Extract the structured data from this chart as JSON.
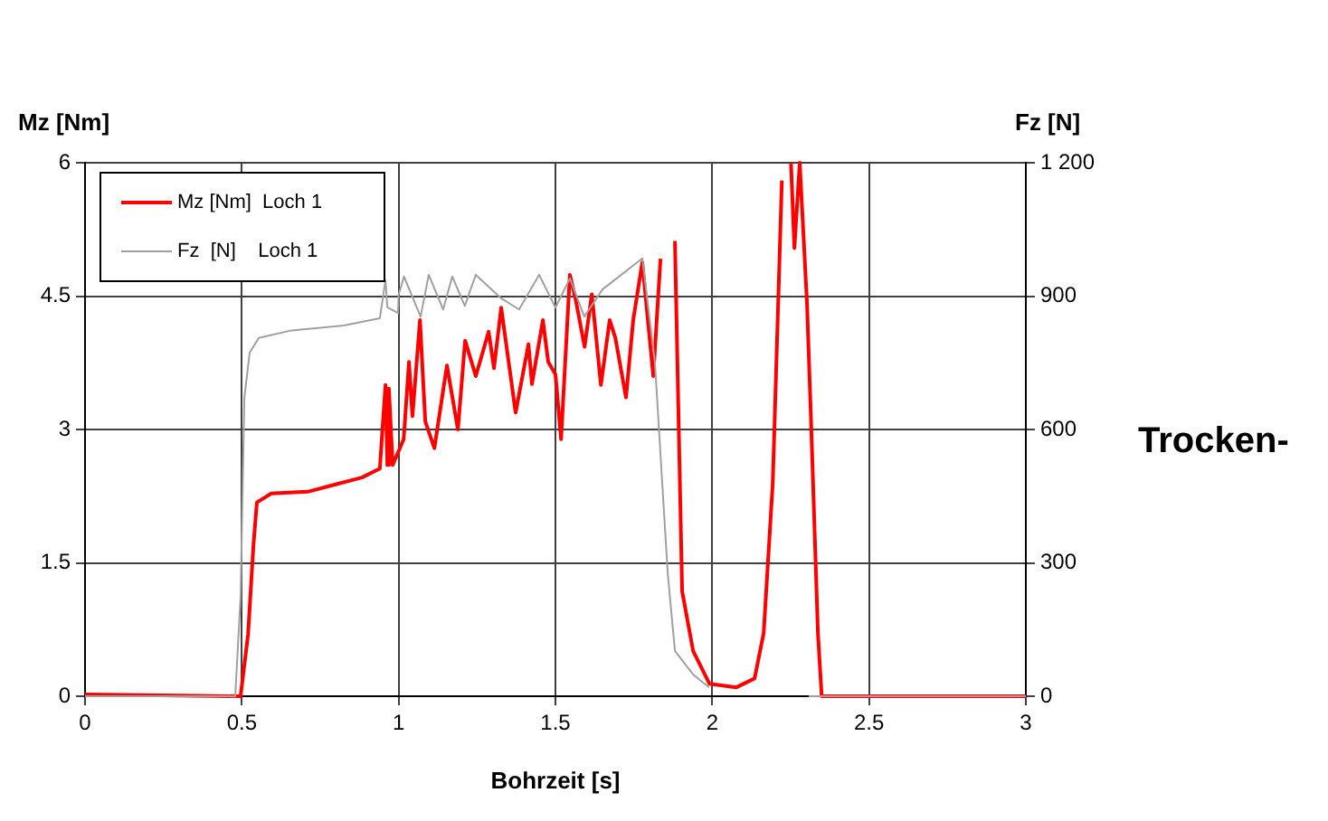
{
  "chart_data": {
    "type": "line",
    "xlabel": "Bohrzeit [s]",
    "ylabel": "Mz [Nm]",
    "y2label": "Fz [N]",
    "xlim": [
      0,
      3
    ],
    "xticks": [
      0,
      0.5,
      1,
      1.5,
      2,
      2.5,
      3
    ],
    "ylim": [
      0,
      6
    ],
    "yticks": [
      0,
      1.5,
      3,
      4.5,
      6
    ],
    "y2lim": [
      0,
      1200
    ],
    "y2ticks": [
      0,
      300,
      600,
      900,
      {
        "value": 1200,
        "label": "1 200"
      }
    ],
    "grid": true,
    "legend": "top left",
    "marker": "none",
    "line_style": "solid",
    "annotations": [
      "Trocken-"
    ],
    "series": [
      {
        "name": "Mz [Nm]  Loch 1",
        "color": "#ff0000",
        "axis": "y",
        "x": [
          0,
          0.496,
          0.52,
          0.537,
          0.548,
          0.594,
          0.71,
          0.796,
          0.883,
          0.94,
          0.958,
          0.964,
          0.969,
          0.981,
          1.016,
          1.033,
          1.044,
          1.068,
          1.085,
          1.114,
          1.154,
          1.189,
          1.212,
          1.246,
          1.287,
          1.304,
          1.327,
          1.373,
          1.414,
          1.425,
          1.46,
          1.477,
          1.5,
          1.518,
          1.546,
          1.564,
          1.593,
          1.616,
          1.645,
          1.673,
          1.691,
          1.725,
          1.748,
          1.777,
          1.812,
          1.835,
          1.858,
          1.881,
          1.904,
          1.939,
          1.991,
          2.077,
          2.135,
          2.164,
          2.193,
          2.222,
          2.233,
          2.251,
          2.262,
          2.279,
          2.302,
          2.314,
          2.337,
          2.349,
          3
        ],
        "values": [
          0.02,
          0,
          0.7,
          1.7,
          2.18,
          2.28,
          2.3,
          2.38,
          2.46,
          2.56,
          3.5,
          2.6,
          3.46,
          2.6,
          2.89,
          3.76,
          3.15,
          4.23,
          3.09,
          2.79,
          3.72,
          3.0,
          4.0,
          3.6,
          4.1,
          3.69,
          4.37,
          3.19,
          3.96,
          3.51,
          4.23,
          3.76,
          3.62,
          2.89,
          4.74,
          4.47,
          3.93,
          4.52,
          3.5,
          4.23,
          4.03,
          3.36,
          4.23,
          4.88,
          3.6,
          4.92,
          null,
          5.12,
          1.18,
          0.51,
          0.14,
          0.1,
          0.2,
          0.71,
          2.4,
          5.8,
          null,
          6.0,
          5.04,
          6.0,
          4.43,
          3.21,
          0.71,
          0,
          0
        ]
      },
      {
        "name": "Fz  [N]    Loch 1",
        "color": "#a0a0a0",
        "axis": "y2",
        "x": [
          0,
          0.479,
          0.496,
          0.508,
          0.525,
          0.554,
          0.652,
          0.825,
          0.94,
          0.958,
          0.964,
          0.998,
          1.0,
          1.017,
          1.07,
          1.096,
          1.142,
          1.171,
          1.211,
          1.246,
          1.327,
          1.384,
          1.448,
          1.5,
          1.546,
          1.592,
          1.65,
          1.777,
          1.777,
          1.817,
          1.858,
          1.881,
          1.939,
          1.99,
          2.078,
          2.135,
          2.158,
          2.18,
          2.209,
          2.239,
          2.256,
          2.279,
          2.308,
          2.32,
          3
        ],
        "values": [
          0,
          0,
          224,
          671,
          773,
          806,
          822,
          834,
          850,
          936,
          875,
          862,
          903,
          944,
          854,
          948,
          870,
          944,
          878,
          948,
          895,
          870,
          948,
          874,
          940,
          854,
          915,
          985,
          985,
          753,
          277,
          102,
          49,
          20,
          null,
          null,
          null,
          null,
          null,
          null,
          null,
          null,
          0,
          0,
          0
        ]
      }
    ]
  }
}
